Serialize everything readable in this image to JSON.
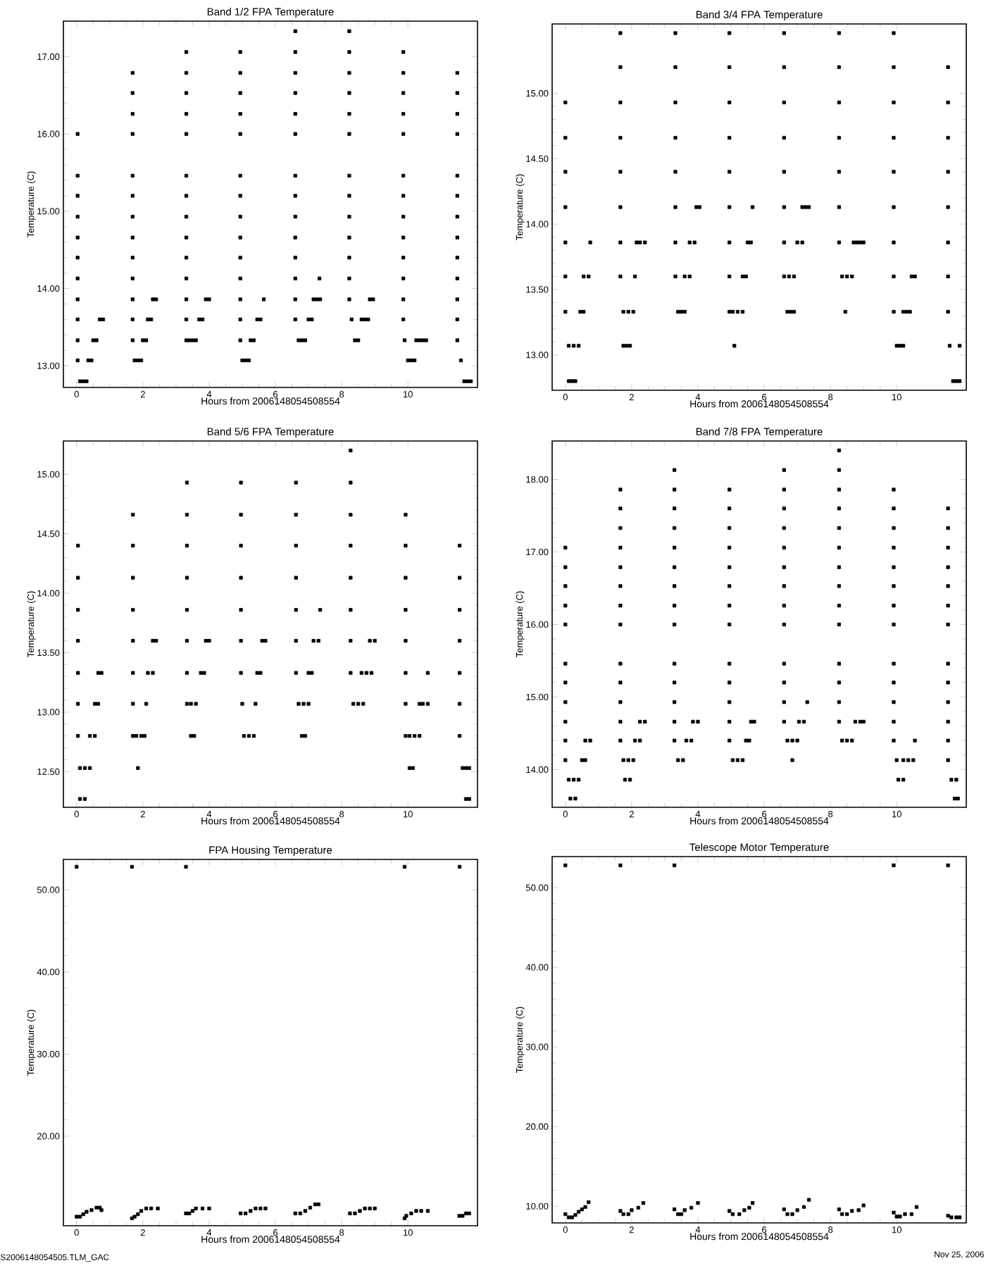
{
  "chart_data": [
    {
      "type": "scatter",
      "title": "Band 1/2 FPA Temperature",
      "xlabel": "Hours from 2006148054508554",
      "ylabel": "Temperature (C)",
      "xlim": [
        -0.4,
        12.1
      ],
      "xticks": [
        0,
        2,
        4,
        6,
        8,
        10
      ],
      "ylim": [
        12.72,
        17.46
      ],
      "yticks": [
        {
          "value": 13,
          "label": "13.00"
        },
        {
          "value": 14,
          "label": "14.00"
        },
        {
          "value": 15,
          "label": "15.00"
        },
        {
          "value": 16,
          "label": "16.00"
        },
        {
          "value": 17,
          "label": "17.00"
        }
      ],
      "marker": "square",
      "series": [
        {
          "color": "#000000",
          "x": [
            0.03,
            0.03,
            0.03,
            0.03,
            0.03,
            0.03,
            0.03,
            0.03,
            0.03,
            0.03,
            0.03,
            0.1,
            0.2,
            0.3,
            0.35,
            0.45,
            0.5,
            0.6,
            0.7,
            0.8,
            1.69,
            1.69,
            1.69,
            1.69,
            1.69,
            1.69,
            1.69,
            1.69,
            1.69,
            1.69,
            1.69,
            1.69,
            1.69,
            1.75,
            1.85,
            1.95,
            2.0,
            2.1,
            2.15,
            2.25,
            2.3,
            2.4,
            3.31,
            3.31,
            3.31,
            3.31,
            3.31,
            3.31,
            3.31,
            3.31,
            3.31,
            3.31,
            3.31,
            3.31,
            3.31,
            3.31,
            3.4,
            3.5,
            3.6,
            3.7,
            3.8,
            3.9,
            4.0,
            4.94,
            4.94,
            4.94,
            4.94,
            4.94,
            4.94,
            4.94,
            4.94,
            4.94,
            4.94,
            4.94,
            4.94,
            4.94,
            4.94,
            5.0,
            5.1,
            5.2,
            5.25,
            5.35,
            5.45,
            5.55,
            5.65,
            6.6,
            6.6,
            6.6,
            6.6,
            6.6,
            6.6,
            6.6,
            6.6,
            6.6,
            6.6,
            6.6,
            6.6,
            6.6,
            6.6,
            6.7,
            6.8,
            6.9,
            7.0,
            7.1,
            7.15,
            7.25,
            7.35,
            7.33,
            8.23,
            8.23,
            8.23,
            8.23,
            8.23,
            8.23,
            8.23,
            8.23,
            8.23,
            8.23,
            8.23,
            8.23,
            8.23,
            8.3,
            8.4,
            8.5,
            8.6,
            8.7,
            8.8,
            8.85,
            8.95,
            9.86,
            9.86,
            9.86,
            9.86,
            9.86,
            9.86,
            9.86,
            9.86,
            9.86,
            9.86,
            9.86,
            9.86,
            9.86,
            9.9,
            10.0,
            10.1,
            10.2,
            10.25,
            10.35,
            10.45,
            10.55,
            11.49,
            11.49,
            11.49,
            11.49,
            11.49,
            11.49,
            11.49,
            11.49,
            11.49,
            11.49,
            11.49,
            11.49,
            11.49,
            11.6,
            11.7,
            11.8,
            11.9
          ],
          "values": [
            13.07,
            13.33,
            13.6,
            13.86,
            14.13,
            14.4,
            14.66,
            14.93,
            15.2,
            15.46,
            16.0,
            12.8,
            12.8,
            12.8,
            13.07,
            13.07,
            13.33,
            13.33,
            13.6,
            13.6,
            13.33,
            13.6,
            13.86,
            14.13,
            14.4,
            14.66,
            14.93,
            15.2,
            15.46,
            16.0,
            16.26,
            16.53,
            16.79,
            13.07,
            13.07,
            13.07,
            13.33,
            13.33,
            13.6,
            13.6,
            13.86,
            13.86,
            13.33,
            13.6,
            13.86,
            14.13,
            14.4,
            14.66,
            14.93,
            15.2,
            15.46,
            16.0,
            16.26,
            16.53,
            16.79,
            17.06,
            13.33,
            13.33,
            13.33,
            13.6,
            13.6,
            13.86,
            13.86,
            13.33,
            13.6,
            13.86,
            14.13,
            14.4,
            14.66,
            14.93,
            15.2,
            15.46,
            16.0,
            16.26,
            16.53,
            16.79,
            17.06,
            13.07,
            13.07,
            13.07,
            13.33,
            13.33,
            13.6,
            13.6,
            13.86,
            13.6,
            13.86,
            14.13,
            14.4,
            14.66,
            14.93,
            15.2,
            15.46,
            16.0,
            16.26,
            16.53,
            16.79,
            17.06,
            17.33,
            13.33,
            13.33,
            13.33,
            13.6,
            13.6,
            13.86,
            13.86,
            13.86,
            14.13,
            13.86,
            14.13,
            14.4,
            14.66,
            14.93,
            15.2,
            15.46,
            16.0,
            16.26,
            16.53,
            16.79,
            17.06,
            17.33,
            13.6,
            13.33,
            13.33,
            13.6,
            13.6,
            13.6,
            13.86,
            13.86,
            13.6,
            13.86,
            14.13,
            14.4,
            14.66,
            14.93,
            15.2,
            15.46,
            16.0,
            16.26,
            16.53,
            16.79,
            17.06,
            13.33,
            13.07,
            13.07,
            13.07,
            13.33,
            13.33,
            13.33,
            13.33,
            13.33,
            13.6,
            13.86,
            14.13,
            14.4,
            14.66,
            14.93,
            15.2,
            15.46,
            16.0,
            16.26,
            16.53,
            16.79,
            13.07,
            12.8,
            12.8,
            12.8
          ]
        }
      ]
    },
    {
      "type": "scatter",
      "title": "Band 3/4 FPA Temperature",
      "xlabel": "Hours from 2006148054508554",
      "ylabel": "Temperature (C)",
      "xlim": [
        -0.4,
        12.1
      ],
      "xticks": [
        0,
        2,
        4,
        6,
        8,
        10
      ],
      "ylim": [
        12.73,
        15.53
      ],
      "yticks": [
        {
          "value": 13,
          "label": "13.00"
        },
        {
          "value": 13.5,
          "label": "13.50"
        },
        {
          "value": 14,
          "label": "14.00"
        },
        {
          "value": 14.5,
          "label": "14.50"
        },
        {
          "value": 15,
          "label": "15.00"
        }
      ],
      "marker": "square",
      "series": [
        {
          "color": "#000000",
          "x": [
            0.0,
            0.0,
            0.0,
            0.0,
            0.0,
            0.0,
            0.0,
            0.1,
            0.2,
            0.3,
            0.1,
            0.25,
            0.4,
            0.45,
            0.55,
            0.55,
            0.7,
            0.75,
            1.66,
            1.66,
            1.66,
            1.66,
            1.66,
            1.66,
            1.66,
            1.66,
            1.75,
            1.85,
            1.95,
            1.75,
            1.9,
            2.05,
            2.1,
            2.15,
            2.25,
            2.4,
            3.32,
            3.32,
            3.32,
            3.32,
            3.32,
            3.32,
            3.32,
            3.32,
            3.4,
            3.5,
            3.6,
            3.6,
            3.75,
            3.75,
            3.9,
            3.95,
            4.05,
            4.95,
            4.95,
            4.95,
            4.95,
            4.95,
            4.95,
            4.95,
            4.95,
            4.95,
            5.1,
            5.05,
            5.2,
            5.35,
            5.35,
            5.45,
            5.5,
            5.6,
            5.65,
            6.6,
            6.6,
            6.6,
            6.6,
            6.6,
            6.6,
            6.6,
            6.6,
            6.7,
            6.8,
            6.9,
            6.75,
            6.9,
            7.0,
            7.15,
            7.15,
            7.25,
            7.35,
            8.26,
            8.26,
            8.26,
            8.26,
            8.26,
            8.26,
            8.26,
            8.45,
            8.35,
            8.5,
            8.65,
            8.7,
            8.8,
            8.9,
            9.0,
            9.91,
            9.91,
            9.91,
            9.91,
            9.91,
            9.91,
            9.91,
            9.91,
            9.91,
            10.0,
            10.1,
            10.2,
            10.2,
            10.3,
            10.4,
            10.45,
            10.55,
            11.55,
            11.55,
            11.55,
            11.55,
            11.55,
            11.55,
            11.55,
            11.55,
            11.6,
            11.9,
            11.7,
            11.8,
            11.9
          ],
          "values": [
            13.33,
            13.6,
            13.86,
            14.13,
            14.4,
            14.66,
            14.93,
            12.8,
            12.8,
            12.8,
            13.07,
            13.07,
            13.07,
            13.33,
            13.33,
            13.6,
            13.6,
            13.86,
            13.6,
            13.86,
            14.13,
            14.4,
            14.66,
            14.93,
            15.2,
            15.46,
            13.07,
            13.07,
            13.07,
            13.33,
            13.33,
            13.33,
            13.6,
            13.86,
            13.86,
            13.86,
            13.6,
            13.86,
            14.13,
            14.4,
            14.66,
            14.93,
            15.2,
            15.46,
            13.33,
            13.33,
            13.33,
            13.6,
            13.6,
            13.86,
            13.86,
            14.13,
            14.13,
            13.33,
            13.6,
            13.86,
            14.13,
            14.4,
            14.66,
            14.93,
            15.2,
            15.46,
            13.07,
            13.33,
            13.33,
            13.33,
            13.6,
            13.6,
            13.86,
            13.86,
            14.13,
            13.6,
            13.86,
            14.13,
            14.4,
            14.66,
            14.93,
            15.2,
            15.46,
            13.33,
            13.33,
            13.33,
            13.6,
            13.6,
            13.86,
            13.86,
            14.13,
            14.13,
            14.13,
            13.86,
            14.13,
            14.4,
            14.66,
            14.93,
            15.2,
            15.46,
            13.33,
            13.6,
            13.6,
            13.6,
            13.86,
            13.86,
            13.86,
            13.86,
            13.33,
            13.6,
            13.86,
            14.13,
            14.4,
            14.66,
            14.93,
            15.2,
            15.46,
            13.07,
            13.07,
            13.07,
            13.33,
            13.33,
            13.33,
            13.6,
            13.6,
            13.33,
            13.6,
            13.86,
            14.13,
            14.4,
            14.66,
            14.93,
            15.2,
            13.07,
            13.07,
            12.8,
            12.8,
            12.8
          ]
        }
      ]
    },
    {
      "type": "scatter",
      "title": "Band 5/6 FPA Temperature",
      "xlabel": "Hours from 2006148054508554",
      "ylabel": "Temperature (C)",
      "xlim": [
        -0.4,
        12.1
      ],
      "xticks": [
        0,
        2,
        4,
        6,
        8,
        10
      ],
      "ylim": [
        12.2,
        15.28
      ],
      "yticks": [
        {
          "value": 12.5,
          "label": "12.50"
        },
        {
          "value": 13,
          "label": "13.00"
        },
        {
          "value": 13.5,
          "label": "13.50"
        },
        {
          "value": 14,
          "label": "14.00"
        },
        {
          "value": 14.5,
          "label": "14.50"
        },
        {
          "value": 15,
          "label": "15.00"
        }
      ],
      "marker": "square",
      "series": [
        {
          "color": "#000000",
          "x": [
            0.04,
            0.04,
            0.04,
            0.04,
            0.04,
            0.04,
            0.04,
            0.1,
            0.25,
            0.1,
            0.25,
            0.4,
            0.4,
            0.55,
            0.55,
            0.65,
            0.65,
            0.75,
            1.7,
            1.7,
            1.7,
            1.7,
            1.7,
            1.7,
            1.7,
            1.7,
            1.85,
            1.8,
            1.95,
            2.05,
            2.1,
            2.15,
            2.3,
            2.3,
            2.4,
            3.33,
            3.33,
            3.33,
            3.33,
            3.33,
            3.33,
            3.33,
            3.33,
            3.45,
            3.55,
            3.45,
            3.6,
            3.75,
            3.85,
            3.9,
            4.0,
            4.96,
            4.96,
            4.96,
            4.96,
            4.96,
            4.96,
            4.96,
            5.05,
            5.2,
            5.35,
            5.0,
            5.4,
            5.45,
            5.55,
            5.6,
            5.7,
            6.62,
            6.62,
            6.62,
            6.62,
            6.62,
            6.62,
            6.62,
            6.8,
            6.9,
            6.7,
            6.85,
            7.0,
            7.0,
            7.1,
            7.15,
            7.3,
            7.35,
            8.27,
            8.27,
            8.27,
            8.27,
            8.27,
            8.27,
            8.27,
            8.27,
            8.35,
            8.5,
            8.65,
            8.6,
            8.75,
            8.9,
            8.85,
            9.0,
            9.93,
            9.93,
            9.93,
            9.93,
            9.93,
            9.93,
            9.93,
            9.93,
            10.05,
            10.15,
            10.05,
            10.2,
            10.35,
            10.35,
            10.45,
            10.6,
            10.6,
            11.56,
            11.56,
            11.56,
            11.56,
            11.56,
            11.56,
            11.56,
            11.65,
            11.75,
            11.85,
            11.75,
            11.85
          ],
          "values": [
            12.8,
            13.07,
            13.33,
            13.6,
            13.86,
            14.13,
            14.4,
            12.27,
            12.27,
            12.53,
            12.53,
            12.53,
            12.8,
            12.8,
            13.07,
            13.07,
            13.33,
            13.33,
            12.8,
            13.07,
            13.33,
            13.6,
            13.86,
            14.13,
            14.4,
            14.66,
            12.53,
            12.8,
            12.8,
            12.8,
            13.07,
            13.33,
            13.33,
            13.6,
            13.6,
            13.07,
            13.33,
            13.6,
            13.86,
            14.13,
            14.4,
            14.66,
            14.93,
            12.8,
            12.8,
            13.07,
            13.07,
            13.33,
            13.33,
            13.6,
            13.6,
            13.33,
            13.6,
            13.86,
            14.13,
            14.4,
            14.66,
            14.93,
            12.8,
            12.8,
            12.8,
            13.07,
            13.07,
            13.33,
            13.33,
            13.6,
            13.6,
            13.33,
            13.6,
            13.86,
            14.13,
            14.4,
            14.66,
            14.93,
            12.8,
            12.8,
            13.07,
            13.07,
            13.07,
            13.33,
            13.33,
            13.6,
            13.6,
            13.86,
            13.33,
            13.6,
            13.86,
            14.13,
            14.4,
            14.66,
            14.93,
            15.2,
            13.07,
            13.07,
            13.07,
            13.33,
            13.33,
            13.33,
            13.6,
            13.6,
            12.8,
            13.07,
            13.33,
            13.6,
            13.86,
            14.13,
            14.4,
            14.66,
            12.53,
            12.53,
            12.8,
            12.8,
            12.8,
            13.07,
            13.07,
            13.07,
            13.33,
            12.8,
            13.07,
            13.33,
            13.6,
            13.86,
            14.13,
            14.4,
            12.53,
            12.53,
            12.53,
            12.27,
            12.27
          ]
        }
      ]
    },
    {
      "type": "scatter",
      "title": "Band 7/8 FPA Temperature",
      "xlabel": "Hours from 2006148054508554",
      "ylabel": "Temperature (C)",
      "xlim": [
        -0.4,
        12.1
      ],
      "xticks": [
        0,
        2,
        4,
        6,
        8,
        10
      ],
      "ylim": [
        13.48,
        18.53
      ],
      "yticks": [
        {
          "value": 14,
          "label": "14.00"
        },
        {
          "value": 15,
          "label": "15.00"
        },
        {
          "value": 16,
          "label": "16.00"
        },
        {
          "value": 17,
          "label": "17.00"
        },
        {
          "value": 18,
          "label": "18.00"
        }
      ],
      "marker": "square",
      "series": [
        {
          "color": "#000000",
          "x": [
            0.0,
            0.0,
            0.0,
            0.0,
            0.0,
            0.0,
            0.0,
            0.0,
            0.0,
            0.0,
            0.0,
            0.15,
            0.3,
            0.1,
            0.25,
            0.4,
            0.5,
            0.6,
            0.6,
            0.75,
            1.66,
            1.66,
            1.66,
            1.66,
            1.66,
            1.66,
            1.66,
            1.66,
            1.66,
            1.66,
            1.66,
            1.66,
            1.66,
            1.8,
            1.95,
            1.75,
            1.9,
            2.05,
            2.1,
            2.25,
            2.25,
            2.4,
            3.29,
            3.29,
            3.29,
            3.29,
            3.29,
            3.29,
            3.29,
            3.29,
            3.29,
            3.29,
            3.29,
            3.29,
            3.29,
            3.29,
            3.4,
            3.55,
            3.65,
            3.8,
            3.85,
            4.0,
            4.95,
            4.95,
            4.95,
            4.95,
            4.95,
            4.95,
            4.95,
            4.95,
            4.95,
            4.95,
            4.95,
            4.95,
            4.95,
            5.05,
            5.2,
            5.35,
            5.45,
            5.55,
            5.6,
            5.7,
            6.6,
            6.6,
            6.6,
            6.6,
            6.6,
            6.6,
            6.6,
            6.6,
            6.6,
            6.6,
            6.6,
            6.6,
            6.6,
            6.85,
            6.7,
            6.85,
            7.0,
            7.05,
            7.2,
            7.3,
            8.26,
            8.26,
            8.26,
            8.26,
            8.26,
            8.26,
            8.26,
            8.26,
            8.26,
            8.26,
            8.26,
            8.26,
            8.26,
            8.26,
            8.35,
            8.5,
            8.65,
            8.75,
            8.9,
            9.0,
            9.91,
            9.91,
            9.91,
            9.91,
            9.91,
            9.91,
            9.91,
            9.91,
            9.91,
            9.91,
            9.91,
            9.91,
            9.91,
            10.05,
            10.2,
            10.0,
            10.2,
            10.35,
            10.5,
            10.55,
            11.55,
            11.55,
            11.55,
            11.55,
            11.55,
            11.55,
            11.55,
            11.55,
            11.55,
            11.55,
            11.55,
            11.55,
            11.55,
            11.65,
            11.8,
            11.75,
            11.85
          ],
          "values": [
            14.13,
            14.4,
            14.66,
            14.93,
            15.2,
            15.46,
            16.0,
            16.26,
            16.53,
            16.79,
            17.06,
            13.6,
            13.6,
            13.86,
            13.86,
            13.86,
            14.13,
            14.13,
            14.4,
            14.4,
            14.4,
            14.66,
            14.93,
            15.2,
            15.46,
            16.0,
            16.26,
            16.53,
            16.79,
            17.06,
            17.33,
            17.6,
            17.86,
            13.86,
            13.86,
            14.13,
            14.13,
            14.13,
            14.4,
            14.4,
            14.66,
            14.66,
            14.4,
            14.66,
            14.93,
            15.2,
            15.46,
            16.0,
            16.26,
            16.53,
            16.79,
            17.06,
            17.33,
            17.6,
            17.86,
            18.13,
            14.13,
            14.13,
            14.4,
            14.4,
            14.66,
            14.66,
            14.4,
            14.66,
            14.93,
            15.2,
            15.46,
            16.0,
            16.26,
            16.53,
            16.79,
            17.06,
            17.33,
            17.6,
            17.86,
            14.13,
            14.13,
            14.13,
            14.4,
            14.4,
            14.66,
            14.66,
            14.66,
            14.93,
            15.2,
            15.46,
            16.0,
            16.26,
            16.53,
            16.79,
            17.06,
            17.33,
            17.6,
            17.86,
            18.13,
            14.13,
            14.4,
            14.4,
            14.4,
            14.66,
            14.66,
            14.93,
            14.66,
            14.93,
            15.2,
            15.46,
            16.0,
            16.26,
            16.53,
            16.79,
            17.06,
            17.33,
            17.6,
            17.86,
            18.13,
            18.4,
            14.4,
            14.4,
            14.4,
            14.66,
            14.66,
            14.66,
            14.4,
            14.66,
            14.93,
            15.2,
            15.46,
            16.0,
            16.26,
            16.53,
            16.79,
            17.06,
            17.33,
            17.6,
            17.86,
            13.86,
            13.86,
            14.13,
            14.13,
            14.13,
            14.13,
            14.4,
            14.13,
            14.4,
            14.66,
            14.93,
            15.2,
            15.46,
            16.0,
            16.26,
            16.53,
            16.79,
            17.06,
            17.33,
            17.6,
            13.86,
            13.86,
            13.6,
            13.6
          ]
        }
      ]
    },
    {
      "type": "scatter",
      "title": "FPA Housing Temperature",
      "xlabel": "Hours from 2006148054508554",
      "ylabel": "Temperature (C)",
      "xlim": [
        -0.4,
        12.1
      ],
      "xticks": [
        0,
        2,
        4,
        6,
        8,
        10
      ],
      "ylim": [
        9.1,
        53.7
      ],
      "yticks": [
        {
          "value": 20,
          "label": "20.00"
        },
        {
          "value": 30,
          "label": "30.00"
        },
        {
          "value": 40,
          "label": "40.00"
        },
        {
          "value": 50,
          "label": "50.00"
        }
      ],
      "marker": "square",
      "annotations": [
        "S2006148054505.TLM_GAC"
      ],
      "series": [
        {
          "color": "#000000",
          "x": [
            0.0,
            1.67,
            3.3,
            9.9,
            11.56,
            0.0,
            0.1,
            0.2,
            0.3,
            0.45,
            0.6,
            0.7,
            0.75,
            1.67,
            1.75,
            1.85,
            1.95,
            2.1,
            2.25,
            2.45,
            3.3,
            3.4,
            3.5,
            3.6,
            3.8,
            4.0,
            4.95,
            5.1,
            5.25,
            5.4,
            5.55,
            5.7,
            6.6,
            6.75,
            6.9,
            7.05,
            7.2,
            7.3,
            8.25,
            8.4,
            8.55,
            8.7,
            8.85,
            9.0,
            9.9,
            9.95,
            10.1,
            10.25,
            10.4,
            10.6,
            11.55,
            11.65,
            11.75,
            11.85
          ],
          "values": [
            52.8,
            52.8,
            52.8,
            52.8,
            52.8,
            10.2,
            10.2,
            10.5,
            10.8,
            11.0,
            11.3,
            11.3,
            11.0,
            10.0,
            10.2,
            10.5,
            10.9,
            11.2,
            11.2,
            11.2,
            10.6,
            10.6,
            10.9,
            11.2,
            11.2,
            11.2,
            10.6,
            10.6,
            10.9,
            11.2,
            11.2,
            11.2,
            10.6,
            10.6,
            10.9,
            11.3,
            11.7,
            11.7,
            10.6,
            10.6,
            10.9,
            11.2,
            11.2,
            11.2,
            10.0,
            10.3,
            10.6,
            10.9,
            10.9,
            10.9,
            10.3,
            10.3,
            10.6,
            10.6
          ]
        }
      ]
    },
    {
      "type": "scatter",
      "title": "Telescope Motor Temperature",
      "xlabel": "Hours from 2006148054508554",
      "ylabel": "Temperature (C)",
      "xlim": [
        -0.4,
        12.1
      ],
      "xticks": [
        0,
        2,
        4,
        6,
        8,
        10
      ],
      "ylim": [
        7.9,
        53.9
      ],
      "yticks": [
        {
          "value": 10,
          "label": "10.00"
        },
        {
          "value": 20,
          "label": "20.00"
        },
        {
          "value": 30,
          "label": "30.00"
        },
        {
          "value": 40,
          "label": "40.00"
        },
        {
          "value": 50,
          "label": "50.00"
        }
      ],
      "marker": "square",
      "annotations": [
        "Nov 25, 2006"
      ],
      "series": [
        {
          "color": "#000000",
          "x": [
            0.0,
            1.66,
            3.29,
            9.91,
            11.55,
            0.0,
            0.1,
            0.2,
            0.3,
            0.4,
            0.5,
            0.6,
            0.7,
            1.66,
            1.75,
            1.9,
            2.0,
            2.2,
            2.35,
            3.29,
            3.4,
            3.5,
            3.6,
            3.8,
            4.0,
            4.95,
            5.05,
            5.25,
            5.4,
            5.55,
            5.65,
            6.6,
            6.7,
            6.85,
            7.0,
            7.2,
            7.35,
            8.26,
            8.35,
            8.5,
            8.65,
            8.85,
            9.0,
            9.91,
            10.0,
            10.1,
            10.25,
            10.45,
            10.6,
            11.55,
            11.65,
            11.8,
            11.9
          ],
          "values": [
            52.8,
            52.8,
            52.8,
            52.8,
            52.8,
            9.0,
            8.6,
            8.6,
            8.9,
            9.3,
            9.6,
            9.9,
            10.5,
            9.4,
            9.0,
            9.0,
            9.5,
            9.8,
            10.4,
            9.6,
            9.0,
            9.0,
            9.5,
            9.8,
            10.4,
            9.4,
            9.0,
            9.0,
            9.5,
            9.8,
            10.4,
            9.6,
            9.0,
            9.0,
            9.5,
            9.9,
            10.8,
            9.6,
            9.0,
            9.0,
            9.4,
            9.5,
            10.1,
            9.2,
            8.7,
            8.7,
            9.0,
            9.0,
            9.9,
            8.8,
            8.6,
            8.6,
            8.6
          ]
        }
      ]
    }
  ]
}
